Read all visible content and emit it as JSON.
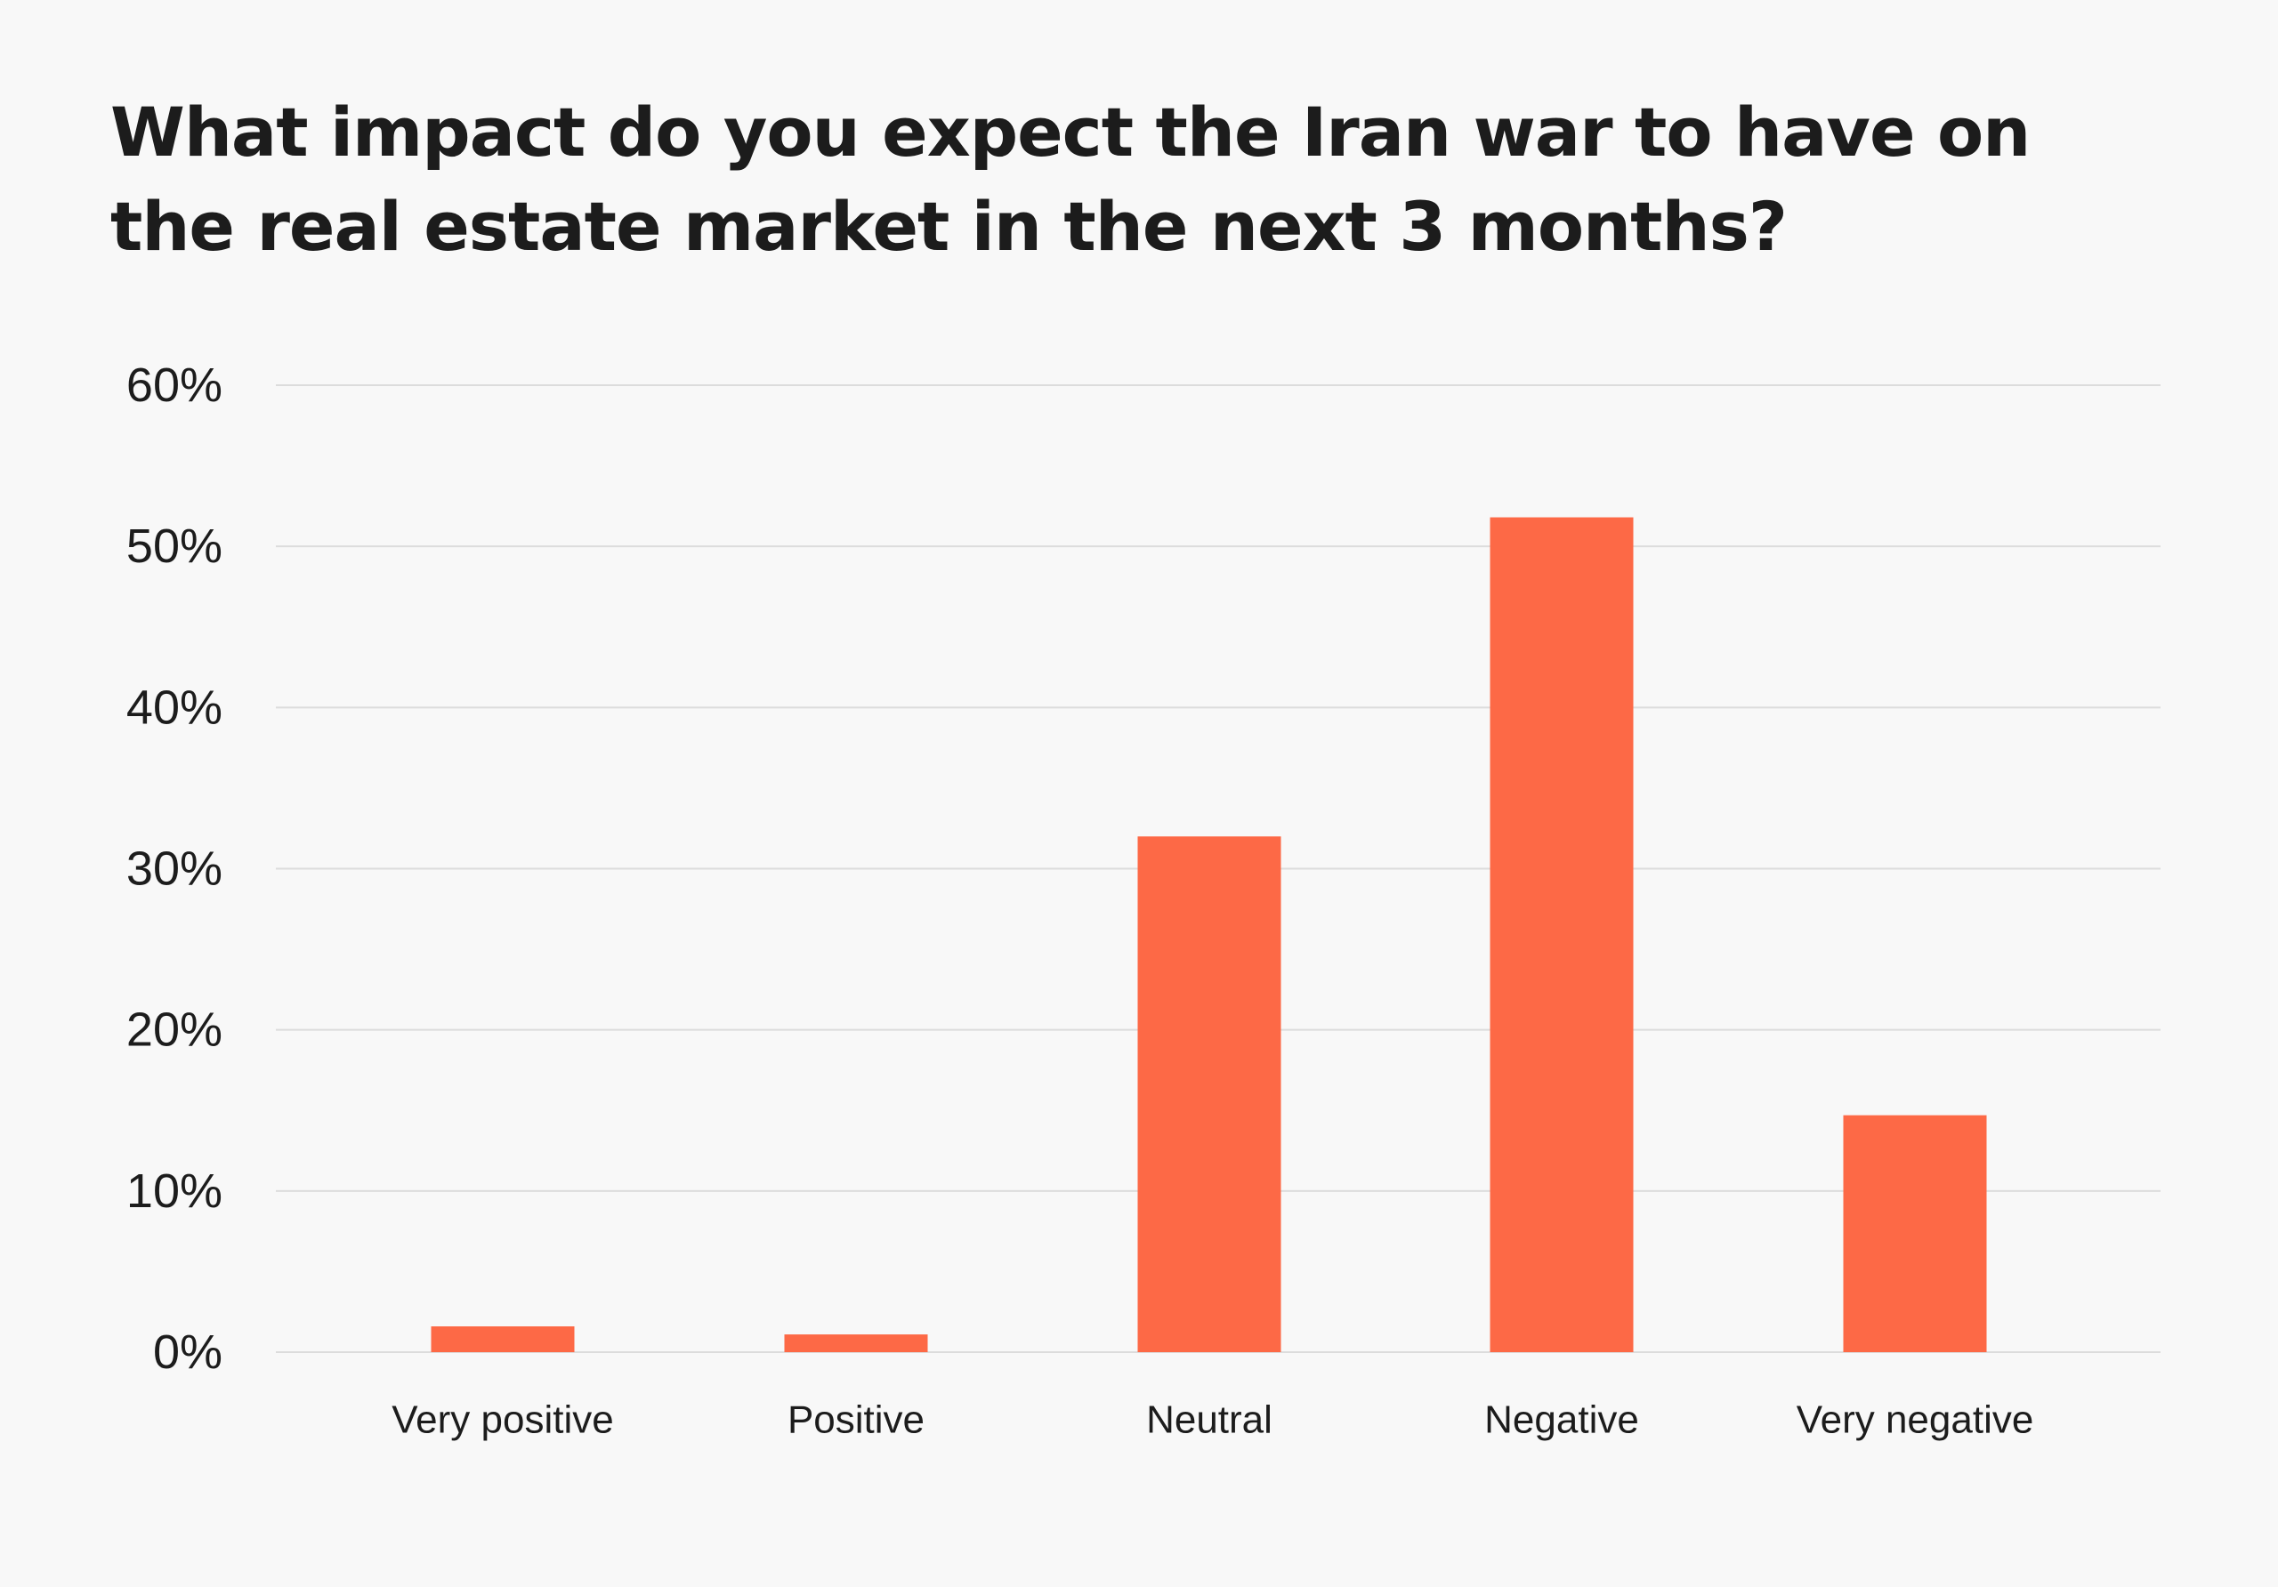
{
  "chart_data": {
    "type": "bar",
    "title": "What impact do you expect the Iran war to have on the real estate market in the next 3 months?",
    "categories": [
      "Very positive",
      "Positive",
      "Neutral",
      "Negative",
      "Very negative"
    ],
    "values": [
      1.6,
      1.1,
      32.0,
      51.8,
      14.7
    ],
    "ylim": [
      0,
      60
    ],
    "yticks": [
      0,
      10,
      20,
      30,
      40,
      50,
      60
    ],
    "ytick_labels": [
      "0%",
      "10%",
      "20%",
      "30%",
      "40%",
      "50%",
      "60%"
    ],
    "xlabel": "",
    "ylabel": "",
    "grid": true,
    "legend": "none",
    "bar_color": "#fd6946",
    "grid_color": "#dcdcdc"
  }
}
